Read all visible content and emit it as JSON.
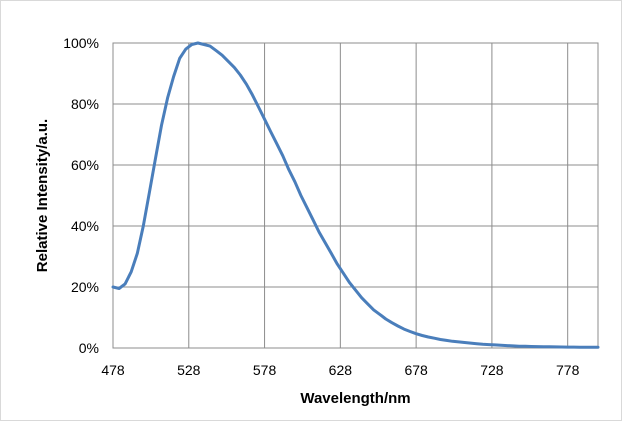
{
  "chart_data": {
    "type": "line",
    "title": "",
    "xlabel": "Wavelength/nm",
    "ylabel": "Relative  Intensity/a.u.",
    "xlim": [
      478,
      798
    ],
    "ylim": [
      0,
      100
    ],
    "x_ticks": [
      478,
      528,
      578,
      628,
      678,
      728,
      778
    ],
    "x_tick_labels": [
      "478",
      "528",
      "578",
      "628",
      "678",
      "728",
      "778"
    ],
    "y_ticks": [
      0,
      20,
      40,
      60,
      80,
      100
    ],
    "y_tick_labels": [
      "0%",
      "20%",
      "40%",
      "60%",
      "80%",
      "100%"
    ],
    "grid": true,
    "legend": "none",
    "line_color": "#4a7ebb",
    "series": [
      {
        "x": [
          478,
          482,
          486,
          490,
          494,
          498,
          502,
          506,
          510,
          514,
          518,
          522,
          526,
          530,
          534,
          538,
          542,
          546,
          550,
          554,
          558,
          562,
          566,
          570,
          574,
          578,
          582,
          586,
          590,
          594,
          598,
          602,
          606,
          610,
          614,
          618,
          622,
          626,
          630,
          634,
          638,
          642,
          646,
          650,
          654,
          658,
          662,
          666,
          670,
          674,
          678,
          682,
          686,
          690,
          694,
          698,
          702,
          706,
          710,
          714,
          718,
          722,
          726,
          730,
          734,
          738,
          742,
          746,
          750,
          754,
          758,
          762,
          766,
          770,
          774,
          778,
          782,
          786,
          790,
          794,
          798
        ],
        "y": [
          20,
          19.5,
          21,
          25,
          31,
          40,
          51,
          62,
          73,
          82,
          89,
          95,
          98,
          99.5,
          100,
          99.5,
          99,
          97.5,
          96,
          94,
          92,
          89.5,
          86.5,
          83,
          79,
          75,
          71,
          67,
          63,
          58.5,
          54.5,
          50,
          46,
          42,
          38,
          34.5,
          31,
          27.5,
          24.5,
          21.5,
          19,
          16.5,
          14.5,
          12.5,
          11,
          9.5,
          8.3,
          7.2,
          6.2,
          5.4,
          4.7,
          4.1,
          3.6,
          3.2,
          2.8,
          2.5,
          2.2,
          2.0,
          1.8,
          1.6,
          1.4,
          1.2,
          1.1,
          1.0,
          0.9,
          0.8,
          0.7,
          0.6,
          0.55,
          0.5,
          0.45,
          0.4,
          0.38,
          0.35,
          0.32,
          0.3,
          0.28,
          0.26,
          0.25,
          0.24,
          0.23
        ]
      }
    ]
  }
}
